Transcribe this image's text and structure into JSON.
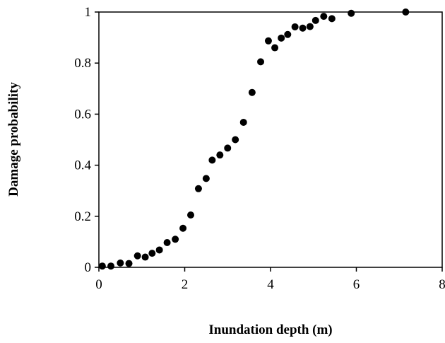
{
  "chart_data": {
    "type": "scatter",
    "title": "",
    "xlabel": "Inundation depth (m)",
    "ylabel": "Damage probability",
    "xlim": [
      0,
      8
    ],
    "ylim": [
      0,
      1
    ],
    "xticks": [
      "0",
      "2",
      "4",
      "6",
      "8"
    ],
    "yticks": [
      "0",
      "0.2",
      "0.4",
      "0.6",
      "0.8",
      "1"
    ],
    "grid": false,
    "legend": "none",
    "marker_color": "#000000",
    "series": [
      {
        "x": [
          0.08,
          0.28,
          0.5,
          0.7,
          0.9,
          1.08,
          1.24,
          1.41,
          1.59,
          1.78,
          1.96,
          2.14,
          2.32,
          2.5,
          2.64,
          2.82,
          3.0,
          3.18,
          3.37,
          3.57,
          3.77,
          3.95,
          4.1,
          4.25,
          4.4,
          4.57,
          4.75,
          4.92,
          5.05,
          5.24,
          5.43,
          5.88,
          7.15
        ],
        "y": [
          0.005,
          0.005,
          0.017,
          0.015,
          0.045,
          0.04,
          0.055,
          0.068,
          0.097,
          0.11,
          0.153,
          0.205,
          0.308,
          0.348,
          0.42,
          0.44,
          0.467,
          0.5,
          0.568,
          0.685,
          0.805,
          0.887,
          0.86,
          0.898,
          0.912,
          0.942,
          0.937,
          0.943,
          0.967,
          0.983,
          0.974,
          0.995,
          1.0
        ]
      }
    ]
  }
}
